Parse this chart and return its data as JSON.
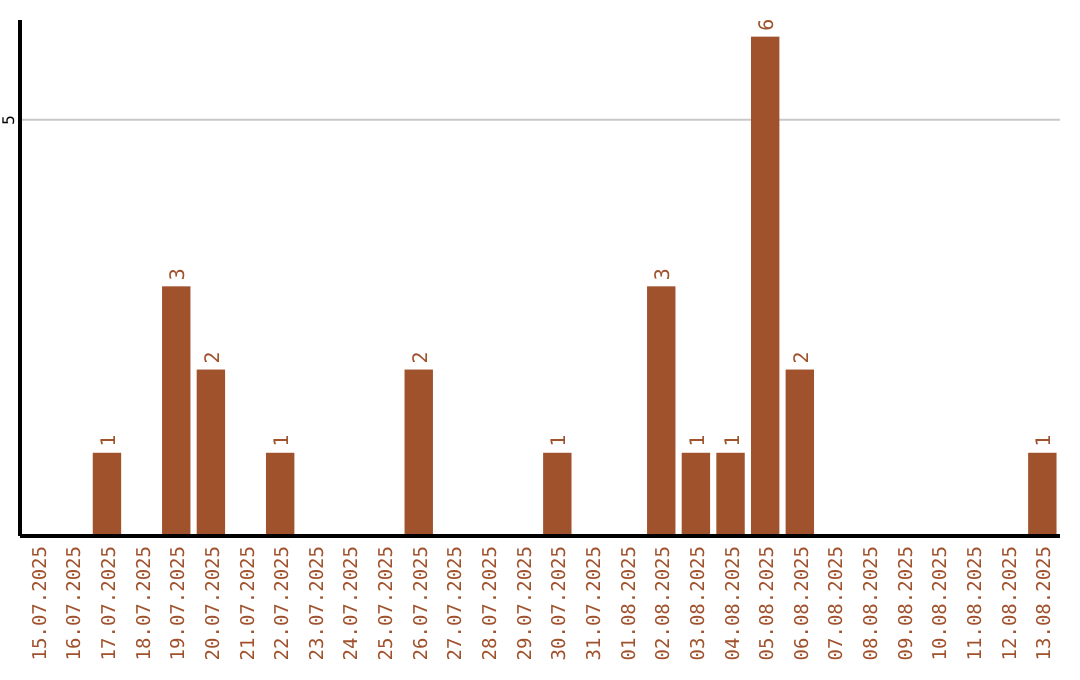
{
  "chart_data": {
    "type": "bar",
    "categories": [
      "15.07.2025",
      "16.07.2025",
      "17.07.2025",
      "18.07.2025",
      "19.07.2025",
      "20.07.2025",
      "21.07.2025",
      "22.07.2025",
      "23.07.2025",
      "24.07.2025",
      "25.07.2025",
      "26.07.2025",
      "27.07.2025",
      "28.07.2025",
      "29.07.2025",
      "30.07.2025",
      "31.07.2025",
      "01.08.2025",
      "02.08.2025",
      "03.08.2025",
      "04.08.2025",
      "05.08.2025",
      "06.08.2025",
      "07.08.2025",
      "08.08.2025",
      "09.08.2025",
      "10.08.2025",
      "11.08.2025",
      "12.08.2025",
      "13.08.2025"
    ],
    "values": [
      0,
      0,
      1,
      0,
      3,
      2,
      0,
      1,
      0,
      0,
      0,
      2,
      0,
      0,
      0,
      1,
      0,
      0,
      3,
      1,
      1,
      6,
      2,
      0,
      0,
      0,
      0,
      0,
      0,
      1
    ],
    "value_labels": [
      null,
      null,
      "1",
      null,
      "3",
      "2",
      null,
      "1",
      null,
      null,
      null,
      "2",
      null,
      null,
      null,
      "1",
      null,
      null,
      "3",
      "1",
      "1",
      "6",
      "2",
      null,
      null,
      null,
      null,
      null,
      null,
      "1"
    ],
    "color": "#a0522d",
    "ylim": [
      0,
      6.2
    ],
    "yticks": [
      5
    ],
    "grid": "y"
  }
}
